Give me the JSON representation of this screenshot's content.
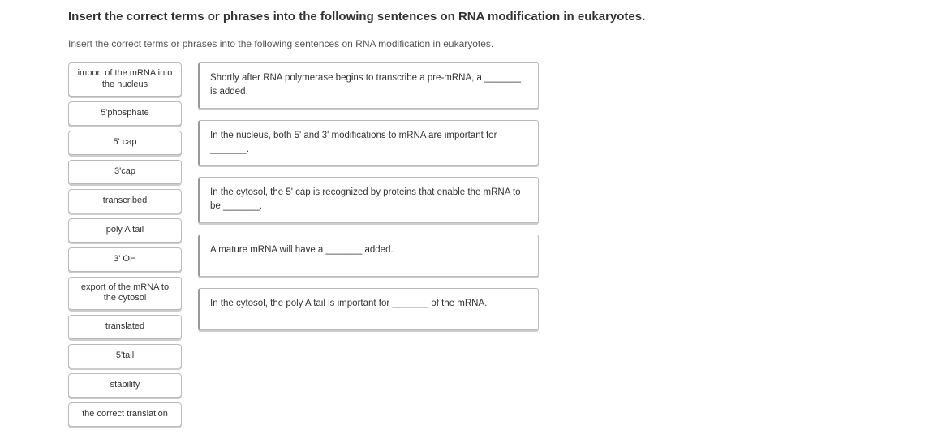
{
  "title": "Insert the correct terms or phrases into the following sentences on RNA modification in eukaryotes.",
  "subtitle": "Insert the correct terms or phrases into the following sentences on RNA modification in eukaryotes.",
  "terms": [
    "import of the mRNA into the nucleus",
    "5'phosphate",
    "5' cap",
    "3'cap",
    "transcribed",
    "poly A tail",
    "3' OH",
    "export of the mRNA to the cytosol",
    "translated",
    "5'tail",
    "stability",
    "the correct translation"
  ],
  "sentences": [
    "Shortly after RNA polymerase begins to transcribe a pre-mRNA, a _______ is added.",
    "In the nucleus, both 5' and 3' modifications to mRNA are important for _______.",
    "In the cytosol, the 5' cap is recognized by proteins that enable the mRNA to be _______.",
    "A mature mRNA will have a _______ added.",
    "In the cytosol, the poly A tail is important for _______ of the mRNA."
  ]
}
